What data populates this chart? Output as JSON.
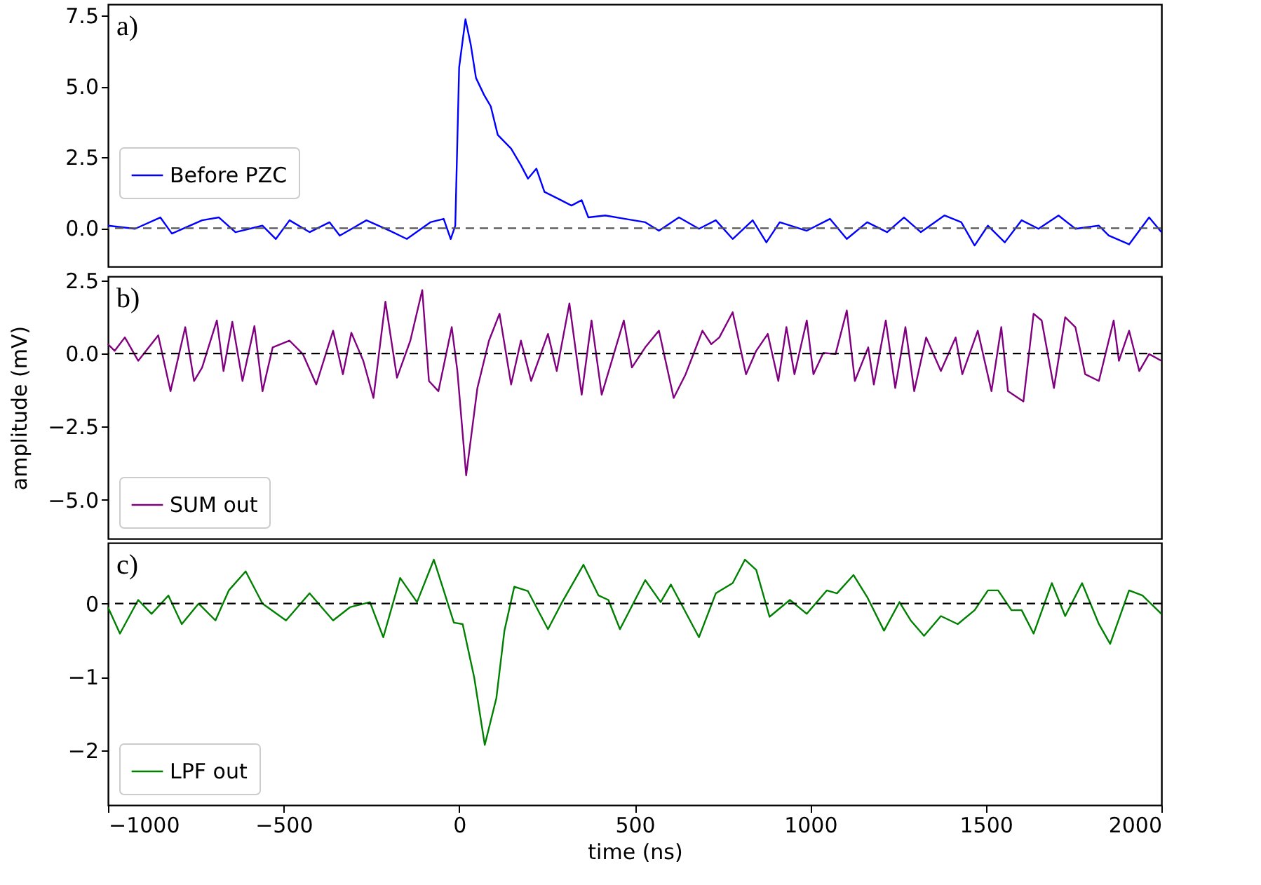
{
  "chart_data": [
    {
      "type": "line",
      "annotations": [
        "a)"
      ],
      "xlim": [
        -1000,
        2000
      ],
      "xticks": [
        -1000,
        -500,
        0,
        500,
        1000,
        1500,
        2000
      ],
      "ylim": [
        -1.35,
        7.9
      ],
      "yticks": [
        {
          "value": 0,
          "label": "0.0"
        },
        2.5,
        {
          "value": 5,
          "label": "5.0"
        },
        7.5
      ],
      "tick_labels": "y",
      "grid": false,
      "legend": "left",
      "ref_lines": [
        {
          "axis": "y",
          "value": 0,
          "color": "#555555",
          "line_style": "dashed"
        }
      ],
      "series": [
        {
          "name": "Before PZC",
          "color": "#0000ff",
          "x": [
            -1000,
            -923,
            -851,
            -818,
            -732,
            -684,
            -637,
            -560,
            -522,
            -483,
            -426,
            -369,
            -340,
            -264,
            -197,
            -149,
            -82,
            -44,
            -24,
            -11,
            0,
            18,
            33,
            48,
            71,
            90,
            110,
            148,
            176,
            196,
            220,
            243,
            282,
            320,
            349,
            368,
            416,
            473,
            530,
            569,
            626,
            683,
            731,
            779,
            836,
            875,
            913,
            990,
            1056,
            1104,
            1162,
            1219,
            1267,
            1315,
            1382,
            1430,
            1468,
            1506,
            1554,
            1602,
            1650,
            1707,
            1755,
            1822,
            1850,
            1908,
            1965,
            2000
          ],
          "values": [
            0.09,
            -0.02,
            0.38,
            -0.19,
            0.28,
            0.38,
            -0.14,
            0.09,
            -0.38,
            0.28,
            -0.14,
            0.21,
            -0.26,
            0.28,
            -0.09,
            -0.38,
            0.21,
            0.33,
            -0.38,
            0.09,
            5.67,
            7.37,
            6.48,
            5.3,
            4.7,
            4.3,
            3.29,
            2.81,
            2.22,
            1.75,
            2.1,
            1.28,
            1.04,
            0.8,
            0.99,
            0.38,
            0.45,
            0.33,
            0.21,
            -0.09,
            0.38,
            -0.02,
            0.28,
            -0.38,
            0.28,
            -0.5,
            0.21,
            -0.09,
            0.33,
            -0.38,
            0.21,
            -0.14,
            0.38,
            -0.14,
            0.45,
            0.21,
            -0.61,
            0.09,
            -0.5,
            0.28,
            -0.02,
            0.45,
            -0.02,
            0.09,
            -0.26,
            -0.57,
            0.38,
            -0.14
          ]
        }
      ]
    },
    {
      "type": "line",
      "annotations": [
        "b)"
      ],
      "ylabel": "amplitude (mV)",
      "xlim": [
        -1000,
        2000
      ],
      "xticks": [
        -1000,
        -500,
        0,
        500,
        1000,
        1500,
        2000
      ],
      "ylim": [
        -6.33,
        2.64
      ],
      "yticks": [
        {
          "value": -5,
          "label": "−5.0"
        },
        -2.5,
        {
          "value": 0,
          "label": "0.0"
        },
        2.5
      ],
      "tick_labels": "y",
      "grid": false,
      "legend": "bottom left",
      "ref_lines": [
        {
          "axis": "y",
          "value": 0,
          "color": "#000000",
          "line_style": "dashed"
        }
      ],
      "series": [
        {
          "name": "SUM out",
          "color": "#800080",
          "x": [
            -1000,
            -981,
            -952,
            -914,
            -857,
            -822,
            -780,
            -755,
            -732,
            -690,
            -671,
            -646,
            -617,
            -583,
            -560,
            -531,
            -483,
            -445,
            -407,
            -359,
            -331,
            -307,
            -273,
            -244,
            -210,
            -177,
            -139,
            -105,
            -86,
            -59,
            -21,
            -5,
            20,
            52,
            85,
            115,
            148,
            176,
            205,
            253,
            278,
            314,
            349,
            377,
            406,
            469,
            492,
            530,
            569,
            611,
            645,
            693,
            718,
            741,
            779,
            817,
            846,
            879,
            909,
            932,
            955,
            990,
            1009,
            1037,
            1072,
            1104,
            1127,
            1165,
            1181,
            1215,
            1242,
            1271,
            1296,
            1330,
            1372,
            1414,
            1433,
            1477,
            1516,
            1544,
            1563,
            1607,
            1636,
            1659,
            1694,
            1726,
            1755,
            1783,
            1822,
            1864,
            1879,
            1908,
            1937,
            1965,
            2000
          ],
          "values": [
            0.32,
            0.09,
            0.55,
            -0.25,
            0.62,
            -1.29,
            0.9,
            -0.94,
            -0.48,
            1.13,
            -0.6,
            1.08,
            -0.94,
            0.94,
            -1.29,
            0.21,
            0.44,
            -0.02,
            -1.06,
            0.78,
            -0.71,
            0.71,
            -0.25,
            -1.52,
            1.77,
            -0.83,
            0.44,
            2.17,
            -0.94,
            -1.29,
            0.9,
            -0.6,
            -4.17,
            -1.18,
            0.44,
            1.36,
            -1.06,
            0.44,
            -0.94,
            0.67,
            -0.6,
            1.71,
            -1.41,
            1.13,
            -1.41,
            1.13,
            -0.48,
            0.21,
            0.78,
            -1.52,
            -0.71,
            0.78,
            0.32,
            0.55,
            1.41,
            -0.71,
            0.09,
            0.67,
            -0.94,
            0.9,
            -0.71,
            1.13,
            -0.71,
            0.02,
            -0.02,
            1.47,
            -0.94,
            0.21,
            -1.06,
            1.13,
            -1.18,
            0.9,
            -1.29,
            0.55,
            -0.6,
            0.55,
            -0.71,
            0.78,
            -1.29,
            0.9,
            -1.29,
            -1.64,
            1.36,
            1.13,
            -1.18,
            1.24,
            0.9,
            -0.71,
            -0.94,
            1.13,
            -0.25,
            0.78,
            -0.6,
            -0.02,
            -0.25
          ]
        }
      ]
    },
    {
      "type": "line",
      "annotations": [
        "c)"
      ],
      "xlabel": "time (ns)",
      "xlim": [
        -1000,
        2000
      ],
      "xticks": [
        -1000,
        -500,
        0,
        500,
        1000,
        1500,
        2000
      ],
      "ylim": [
        -2.75,
        0.83
      ],
      "yticks": [
        -2,
        -1,
        0
      ],
      "grid": false,
      "legend": "bottom left",
      "ref_lines": [
        {
          "axis": "y",
          "value": 0,
          "color": "#000000",
          "line_style": "dashed"
        }
      ],
      "series": [
        {
          "name": "LPF out",
          "color": "#008000",
          "x": [
            -1000,
            -966,
            -914,
            -876,
            -828,
            -790,
            -742,
            -694,
            -656,
            -608,
            -560,
            -493,
            -426,
            -359,
            -311,
            -254,
            -216,
            -168,
            -120,
            -72,
            -44,
            -15,
            10,
            43,
            73,
            106,
            129,
            157,
            196,
            253,
            291,
            354,
            397,
            425,
            458,
            530,
            574,
            603,
            683,
            731,
            779,
            814,
            846,
            884,
            942,
            990,
            1047,
            1076,
            1123,
            1162,
            1210,
            1254,
            1286,
            1324,
            1372,
            1420,
            1468,
            1506,
            1535,
            1573,
            1602,
            1636,
            1688,
            1726,
            1774,
            1822,
            1854,
            1908,
            1946,
            2000
          ],
          "values": [
            -0.05,
            -0.41,
            0.05,
            -0.14,
            0.11,
            -0.28,
            0.0,
            -0.23,
            0.18,
            0.44,
            0.0,
            -0.23,
            0.14,
            -0.23,
            -0.05,
            0.02,
            -0.46,
            0.35,
            0.02,
            0.6,
            0.18,
            -0.26,
            -0.28,
            -1.01,
            -1.93,
            -1.29,
            -0.37,
            0.23,
            0.17,
            -0.35,
            0.0,
            0.53,
            0.11,
            0.05,
            -0.35,
            0.32,
            0.02,
            0.26,
            -0.46,
            0.14,
            0.28,
            0.6,
            0.46,
            -0.18,
            0.05,
            -0.14,
            0.18,
            0.14,
            0.39,
            0.09,
            -0.37,
            0.02,
            -0.23,
            -0.44,
            -0.17,
            -0.28,
            -0.09,
            0.18,
            0.18,
            -0.09,
            -0.09,
            -0.41,
            0.28,
            -0.17,
            0.28,
            -0.28,
            -0.55,
            0.18,
            0.11,
            -0.14
          ]
        }
      ]
    }
  ]
}
